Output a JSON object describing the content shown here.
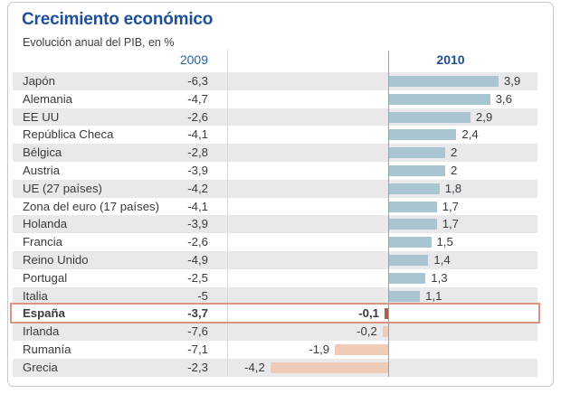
{
  "colors": {
    "title_blue": "#1f4f99",
    "header_2009_blue": "#2d62a6",
    "header_2010_blue": "#1d4e91",
    "bar_positive": "#a9c5d2",
    "bar_negative": "#f0cbb8",
    "bar_highlight": "#a9614d",
    "highlight_border": "#da9480",
    "row_stripe": "#e9e9eb",
    "text": "#3a3a3a"
  },
  "chart_data": {
    "type": "bar",
    "orientation": "horizontal",
    "title": "Crecimiento económico",
    "subtitle": "Evolución anual del PIB, en %",
    "unit": "%",
    "series_labels": [
      "2009",
      "2010"
    ],
    "categories": [
      "Japón",
      "Alemania",
      "EE UU",
      "República Checa",
      "Bélgica",
      "Austria",
      "UE (27 países)",
      "Zona del euro (17 países)",
      "Holanda",
      "Francia",
      "Reino Unido",
      "Portugal",
      "Italia",
      "España",
      "Irlanda",
      "Rumanía",
      "Grecia"
    ],
    "series": [
      {
        "name": "2009",
        "shown_as": "table-column",
        "values": [
          -6.3,
          -4.7,
          -2.6,
          -4.1,
          -2.8,
          -3.9,
          -4.2,
          -4.1,
          -3.9,
          -2.6,
          -4.9,
          -2.5,
          -5,
          -3.7,
          -7.6,
          -7.1,
          -2.3
        ]
      },
      {
        "name": "2010",
        "shown_as": "bars",
        "values": [
          3.9,
          3.6,
          2.9,
          2.4,
          2,
          2,
          1.8,
          1.7,
          1.7,
          1.5,
          1.4,
          1.3,
          1.1,
          -0.1,
          -0.2,
          -1.9,
          -4.2
        ]
      }
    ],
    "highlight": {
      "category": "España",
      "index": 13
    },
    "decimal_separator": ",",
    "axis": {
      "zero_line": true,
      "grid": false,
      "xlim": [
        -4.5,
        4.5
      ]
    },
    "legend_position": "column-headers",
    "row_striping": "alternate-starting-gray"
  }
}
